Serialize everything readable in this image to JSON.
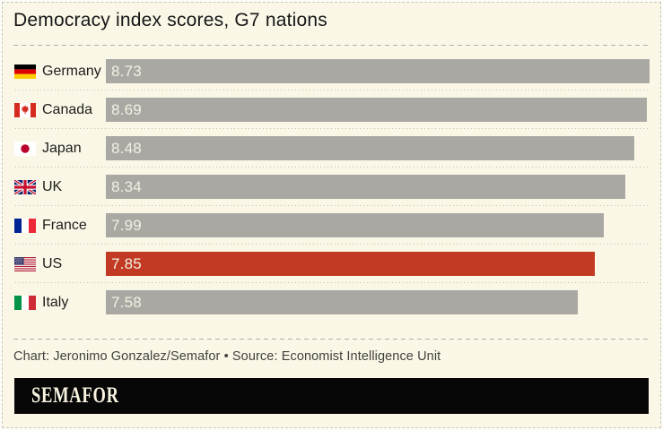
{
  "title": "Democracy index scores, G7 nations",
  "chart_data": {
    "type": "bar",
    "orientation": "horizontal",
    "title": "Democracy index scores, G7 nations",
    "categories": [
      "Germany",
      "Canada",
      "Japan",
      "UK",
      "France",
      "US",
      "Italy"
    ],
    "values": [
      8.73,
      8.69,
      8.48,
      8.34,
      7.99,
      7.85,
      7.58
    ],
    "value_labels": [
      "8.73",
      "8.69",
      "8.48",
      "8.34",
      "7.99",
      "7.85",
      "7.58"
    ],
    "flags": [
      "germany-flag",
      "canada-flag",
      "japan-flag",
      "uk-flag",
      "france-flag",
      "us-flag",
      "italy-flag"
    ],
    "xlim": [
      0,
      8.73
    ],
    "grid": false,
    "legend": false,
    "value_labels_inside_bar": true,
    "highlighted_category": "US",
    "bar_color": "#a9a8a3",
    "highlight_color": "#c23a24"
  },
  "footer": {
    "credit": "Chart: Jeronimo Gonzalez/Semafor • Source: Economist Intelligence Unit",
    "logo": "SEMAFOR"
  },
  "colors": {
    "background": "#faf7e7",
    "border": "#c8c8c0",
    "bar": "#a9a8a3",
    "highlight": "#c23a24",
    "bar_value_text": "#f3f0e2",
    "title_text": "#161616",
    "credit_text": "#42423d",
    "logo_bar": "#070707",
    "logo_text": "#f8f3e1"
  }
}
